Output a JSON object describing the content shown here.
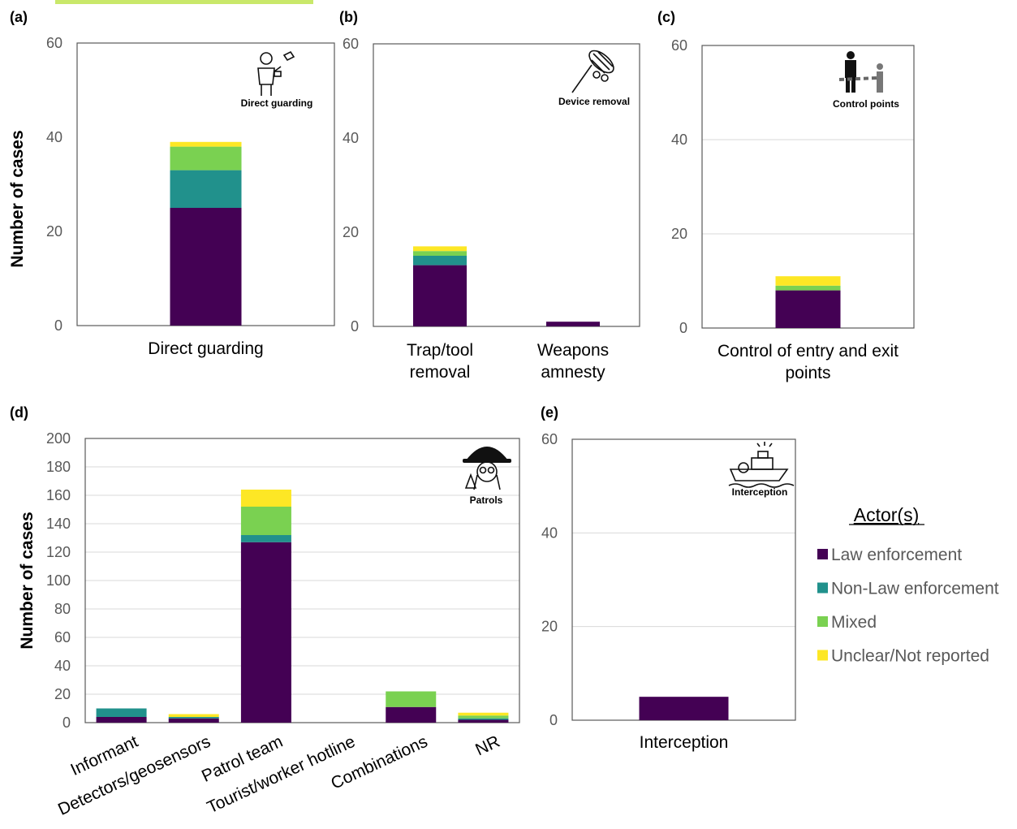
{
  "series_colors": {
    "Law enforcement": "#440154",
    "Non-Law enforcement": "#21918c",
    "Mixed": "#7ad151",
    "Unclear/Not reported": "#fde725"
  },
  "header_accent_color": "#c9e86a",
  "legend": {
    "title": "Actor(s)",
    "entries": [
      "Law enforcement",
      "Non-Law enforcement",
      "Mixed",
      "Unclear/Not reported"
    ]
  },
  "chart_data": [
    {
      "panel": "(a)",
      "type": "bar",
      "stacked": true,
      "ylabel": "Number of cases",
      "ylim": [
        0,
        60
      ],
      "yticks": [
        0,
        20,
        40,
        60
      ],
      "grid": false,
      "icon": "guard-icon",
      "icon_caption": "Direct guarding",
      "categories": [
        [
          "Direct guarding"
        ]
      ],
      "series": [
        {
          "name": "Law enforcement",
          "values": [
            25
          ]
        },
        {
          "name": "Non-Law enforcement",
          "values": [
            8
          ]
        },
        {
          "name": "Mixed",
          "values": [
            5
          ]
        },
        {
          "name": "Unclear/Not reported",
          "values": [
            1
          ]
        }
      ]
    },
    {
      "panel": "(b)",
      "type": "bar",
      "stacked": true,
      "ylabel": "",
      "ylim": [
        0,
        60
      ],
      "yticks": [
        0,
        20,
        40,
        60
      ],
      "grid": false,
      "icon": "snare-icon",
      "icon_caption": "Device removal",
      "categories": [
        [
          "Trap/tool",
          "removal"
        ],
        [
          "Weapons",
          "amnesty"
        ]
      ],
      "series": [
        {
          "name": "Law enforcement",
          "values": [
            13,
            1
          ]
        },
        {
          "name": "Non-Law enforcement",
          "values": [
            2,
            0
          ]
        },
        {
          "name": "Mixed",
          "values": [
            1,
            0
          ]
        },
        {
          "name": "Unclear/Not reported",
          "values": [
            1,
            0
          ]
        }
      ]
    },
    {
      "panel": "(c)",
      "type": "bar",
      "stacked": true,
      "ylabel": "",
      "ylim": [
        0,
        60
      ],
      "yticks": [
        0,
        20,
        40,
        60
      ],
      "grid": true,
      "icon": "checkpoint-icon",
      "icon_caption": "Control points",
      "categories": [
        [
          "Control of entry and exit",
          "points"
        ]
      ],
      "series": [
        {
          "name": "Law enforcement",
          "values": [
            8
          ]
        },
        {
          "name": "Non-Law enforcement",
          "values": [
            0
          ]
        },
        {
          "name": "Mixed",
          "values": [
            1
          ]
        },
        {
          "name": "Unclear/Not reported",
          "values": [
            2
          ]
        }
      ]
    },
    {
      "panel": "(d)",
      "type": "bar",
      "stacked": true,
      "ylabel": "Number of cases",
      "ylim": [
        0,
        200
      ],
      "yticks": [
        0,
        20,
        40,
        60,
        80,
        100,
        120,
        140,
        160,
        180,
        200
      ],
      "grid": true,
      "icon": "ranger-icon",
      "icon_caption": "Patrols",
      "categories": [
        [
          "Informant"
        ],
        [
          "Detectors/geosensors"
        ],
        [
          "Patrol team"
        ],
        [
          "Tourist/worker hotline"
        ],
        [
          "Combinations"
        ],
        [
          "NR"
        ]
      ],
      "series": [
        {
          "name": "Law enforcement",
          "values": [
            4,
            3,
            127,
            0,
            11,
            2
          ]
        },
        {
          "name": "Non-Law enforcement",
          "values": [
            6,
            1,
            5,
            0,
            0,
            1
          ]
        },
        {
          "name": "Mixed",
          "values": [
            0,
            0,
            20,
            0,
            11,
            2
          ]
        },
        {
          "name": "Unclear/Not reported",
          "values": [
            0,
            2,
            12,
            0,
            0,
            2
          ]
        }
      ]
    },
    {
      "panel": "(e)",
      "type": "bar",
      "stacked": true,
      "ylabel": "",
      "ylim": [
        0,
        60
      ],
      "yticks": [
        0,
        20,
        40,
        60
      ],
      "grid": true,
      "icon": "boat-icon",
      "icon_caption": "Interception",
      "categories": [
        [
          "Interception"
        ]
      ],
      "series": [
        {
          "name": "Law enforcement",
          "values": [
            5
          ]
        },
        {
          "name": "Non-Law enforcement",
          "values": [
            0
          ]
        },
        {
          "name": "Mixed",
          "values": [
            0
          ]
        },
        {
          "name": "Unclear/Not reported",
          "values": [
            0
          ]
        }
      ]
    }
  ]
}
